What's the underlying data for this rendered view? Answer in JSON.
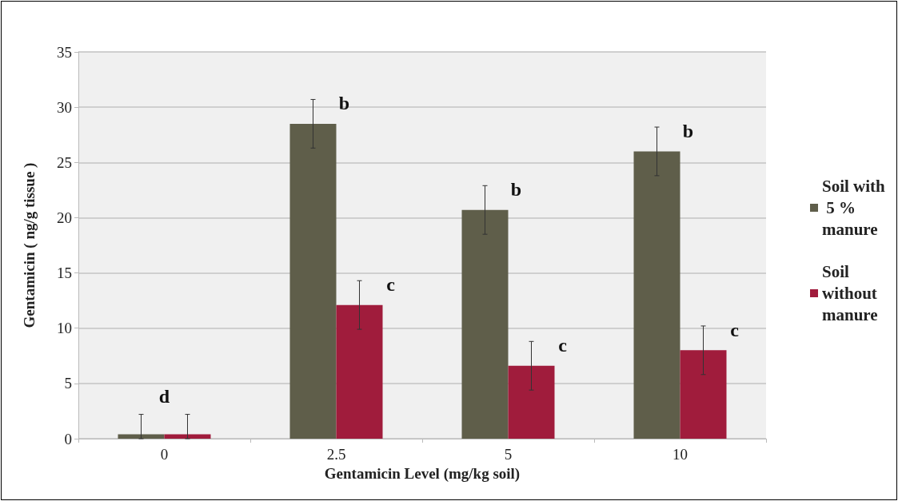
{
  "chart_data": {
    "type": "bar",
    "xlabel": "Gentamicin Level (mg/kg soil)",
    "ylabel": "Gentamicin ( ng/g tissue )",
    "categories": [
      "0",
      "2.5",
      "5",
      "10"
    ],
    "series": [
      {
        "name": "Soil with 5 % manure",
        "color": "#5f5e4a",
        "values": [
          0.4,
          28.5,
          20.7,
          26.0
        ],
        "errors": [
          [
            0,
            2.2
          ],
          2.2,
          2.2,
          2.2
        ],
        "value_labels": [
          "d",
          "b",
          "b",
          "b"
        ]
      },
      {
        "name": "Soil without manure",
        "color": "#a01c3c",
        "values": [
          0.4,
          12.1,
          6.6,
          8.0
        ],
        "errors": [
          [
            0,
            2.2
          ],
          2.2,
          2.2,
          2.2
        ],
        "value_labels": [
          null,
          "c",
          "c",
          "c"
        ]
      }
    ],
    "ylim": [
      0,
      35
    ],
    "yticks": [
      0,
      5,
      10,
      15,
      20,
      25,
      30,
      35
    ],
    "grid": "y",
    "legend": "right"
  }
}
